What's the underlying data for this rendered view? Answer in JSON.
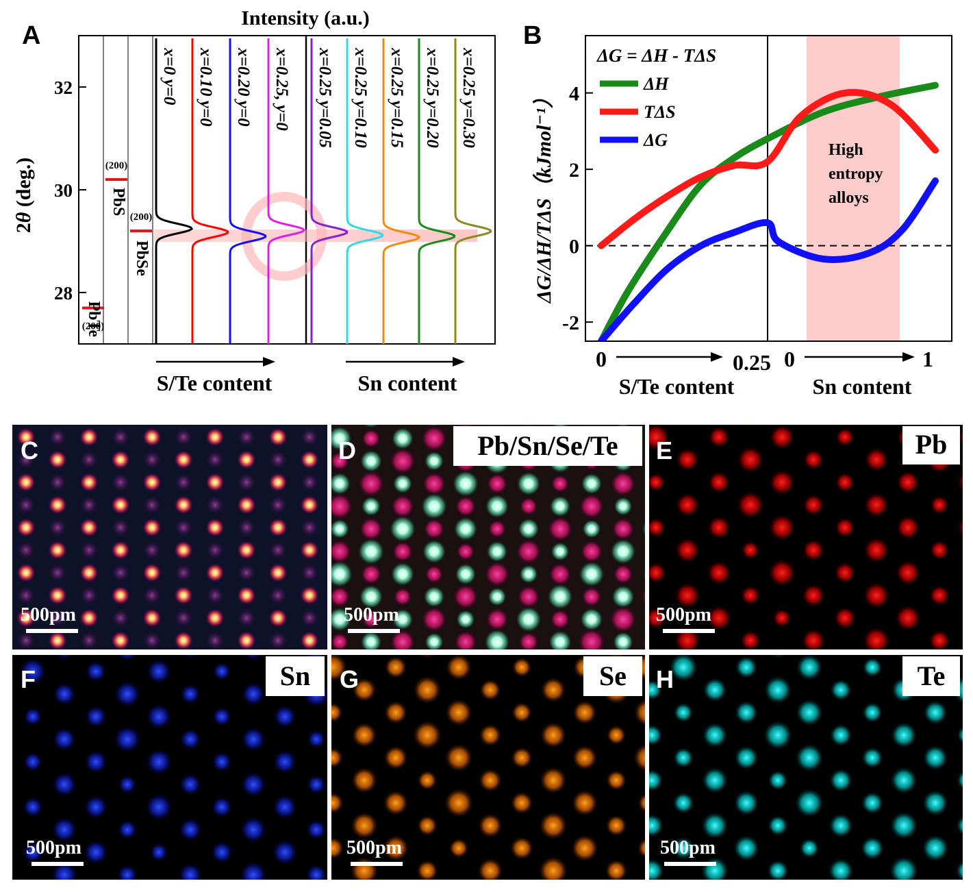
{
  "panel_labels": {
    "a": "A",
    "b": "B",
    "c": "C",
    "d": "D",
    "e": "E",
    "f": "F",
    "g": "G",
    "h": "H"
  },
  "chart_data": [
    {
      "type": "line",
      "panel": "A",
      "title": "Intensity (a.u.)",
      "ylabel": "2θ (deg.)",
      "ylabel_theta": "θ",
      "ylabel_rest": " (deg.)",
      "ylabel_prefix": "2",
      "ylim": [
        27,
        33
      ],
      "yticks": [
        "28",
        "30",
        "32"
      ],
      "reference_lines": [
        {
          "name": "PbTe",
          "hkl": "(200)",
          "two_theta": 27.7
        },
        {
          "name": "PbS",
          "hkl": "(200)",
          "two_theta": 30.2
        },
        {
          "name": "PbSe",
          "hkl": "(200)",
          "two_theta": 29.2
        }
      ],
      "series": [
        {
          "name": "x=0  y=0",
          "peak": 29.25,
          "color": "#000000"
        },
        {
          "name": "x=0.10  y=0",
          "peak": 29.18,
          "color": "#ff0000"
        },
        {
          "name": "x=0.20  y=0",
          "peak": 29.1,
          "color": "#1010ff"
        },
        {
          "name": "x=0.25, y=0",
          "peak": 29.22,
          "color": "#e020e0"
        },
        {
          "name": "x=0.25  y=0.05",
          "peak": 29.18,
          "color": "#8a20d0"
        },
        {
          "name": "x=0.25  y=0.10",
          "peak": 29.12,
          "color": "#30d8e8"
        },
        {
          "name": "x=0.25  y=0.15",
          "peak": 29.08,
          "color": "#f08a10"
        },
        {
          "name": "x=0.25  y=0.20",
          "peak": 29.1,
          "color": "#1a8a1a"
        },
        {
          "name": "x=0.25  y=0.30",
          "peak": 29.2,
          "color": "#8a8a20"
        }
      ],
      "xlabel_left": "S/Te content",
      "xlabel_right": "Sn content"
    },
    {
      "type": "line",
      "panel": "B",
      "ylabel": "ΔG/ΔH/TΔS（kJmol⁻¹）",
      "ylim": [
        -2.5,
        5.5
      ],
      "yticks": [
        "-2",
        "0",
        "2",
        "4"
      ],
      "xticks": [
        "0",
        "0.25",
        "0",
        "1"
      ],
      "xlabel_left": "S/Te content",
      "xlabel_right": "Sn content",
      "equation": "ΔG = ΔH - TΔS",
      "shaded_region_label": "High entropy alloys",
      "shaded_region_label_lines": [
        "High",
        "entropy",
        "alloys"
      ],
      "shaded_sn_range": [
        0.15,
        0.85
      ],
      "series": [
        {
          "name": "ΔH",
          "color": "#1a8a1a",
          "x": [
            0.0,
            0.04,
            0.1,
            0.15,
            0.2,
            0.25,
            0.5,
            0.75,
            1.0
          ],
          "y": [
            -2.5,
            -1.2,
            0.4,
            1.6,
            2.3,
            2.8,
            3.5,
            3.9,
            4.2
          ]
        },
        {
          "name": "TΔS",
          "color": "#ff1a1a",
          "x": [
            0.0,
            0.05,
            0.1,
            0.15,
            0.2,
            0.25,
            0.4,
            0.6,
            0.8,
            1.0
          ],
          "y": [
            0.0,
            0.7,
            1.3,
            1.8,
            2.1,
            2.2,
            3.4,
            4.0,
            3.7,
            2.5
          ]
        },
        {
          "name": "ΔG",
          "color": "#1010ff",
          "x": [
            0.0,
            0.05,
            0.1,
            0.15,
            0.2,
            0.25,
            0.3,
            0.5,
            0.7,
            0.85,
            1.0
          ],
          "y": [
            -2.5,
            -1.5,
            -0.6,
            0.0,
            0.35,
            0.6,
            0.1,
            -0.35,
            -0.2,
            0.4,
            1.7
          ]
        }
      ]
    }
  ],
  "micrographs": [
    {
      "panel": "C",
      "element": "",
      "scale_bar": "500pm"
    },
    {
      "panel": "D",
      "element": "Pb/Sn/Se/Te",
      "scale_bar": "500pm"
    },
    {
      "panel": "E",
      "element": "Pb",
      "scale_bar": "500pm"
    },
    {
      "panel": "F",
      "element": "Sn",
      "scale_bar": "500pm"
    },
    {
      "panel": "G",
      "element": "Se",
      "scale_bar": "500pm"
    },
    {
      "panel": "H",
      "element": "Te",
      "scale_bar": "500pm"
    }
  ],
  "colors": {
    "pb": "#ff1a1a",
    "sn": "#2a3cff",
    "se": "#ff8a10",
    "te": "#20f0f0",
    "stem_core": "#ffe0a0",
    "stem_halo": "#e0205a",
    "highlight_band": "#ffb0b0"
  }
}
